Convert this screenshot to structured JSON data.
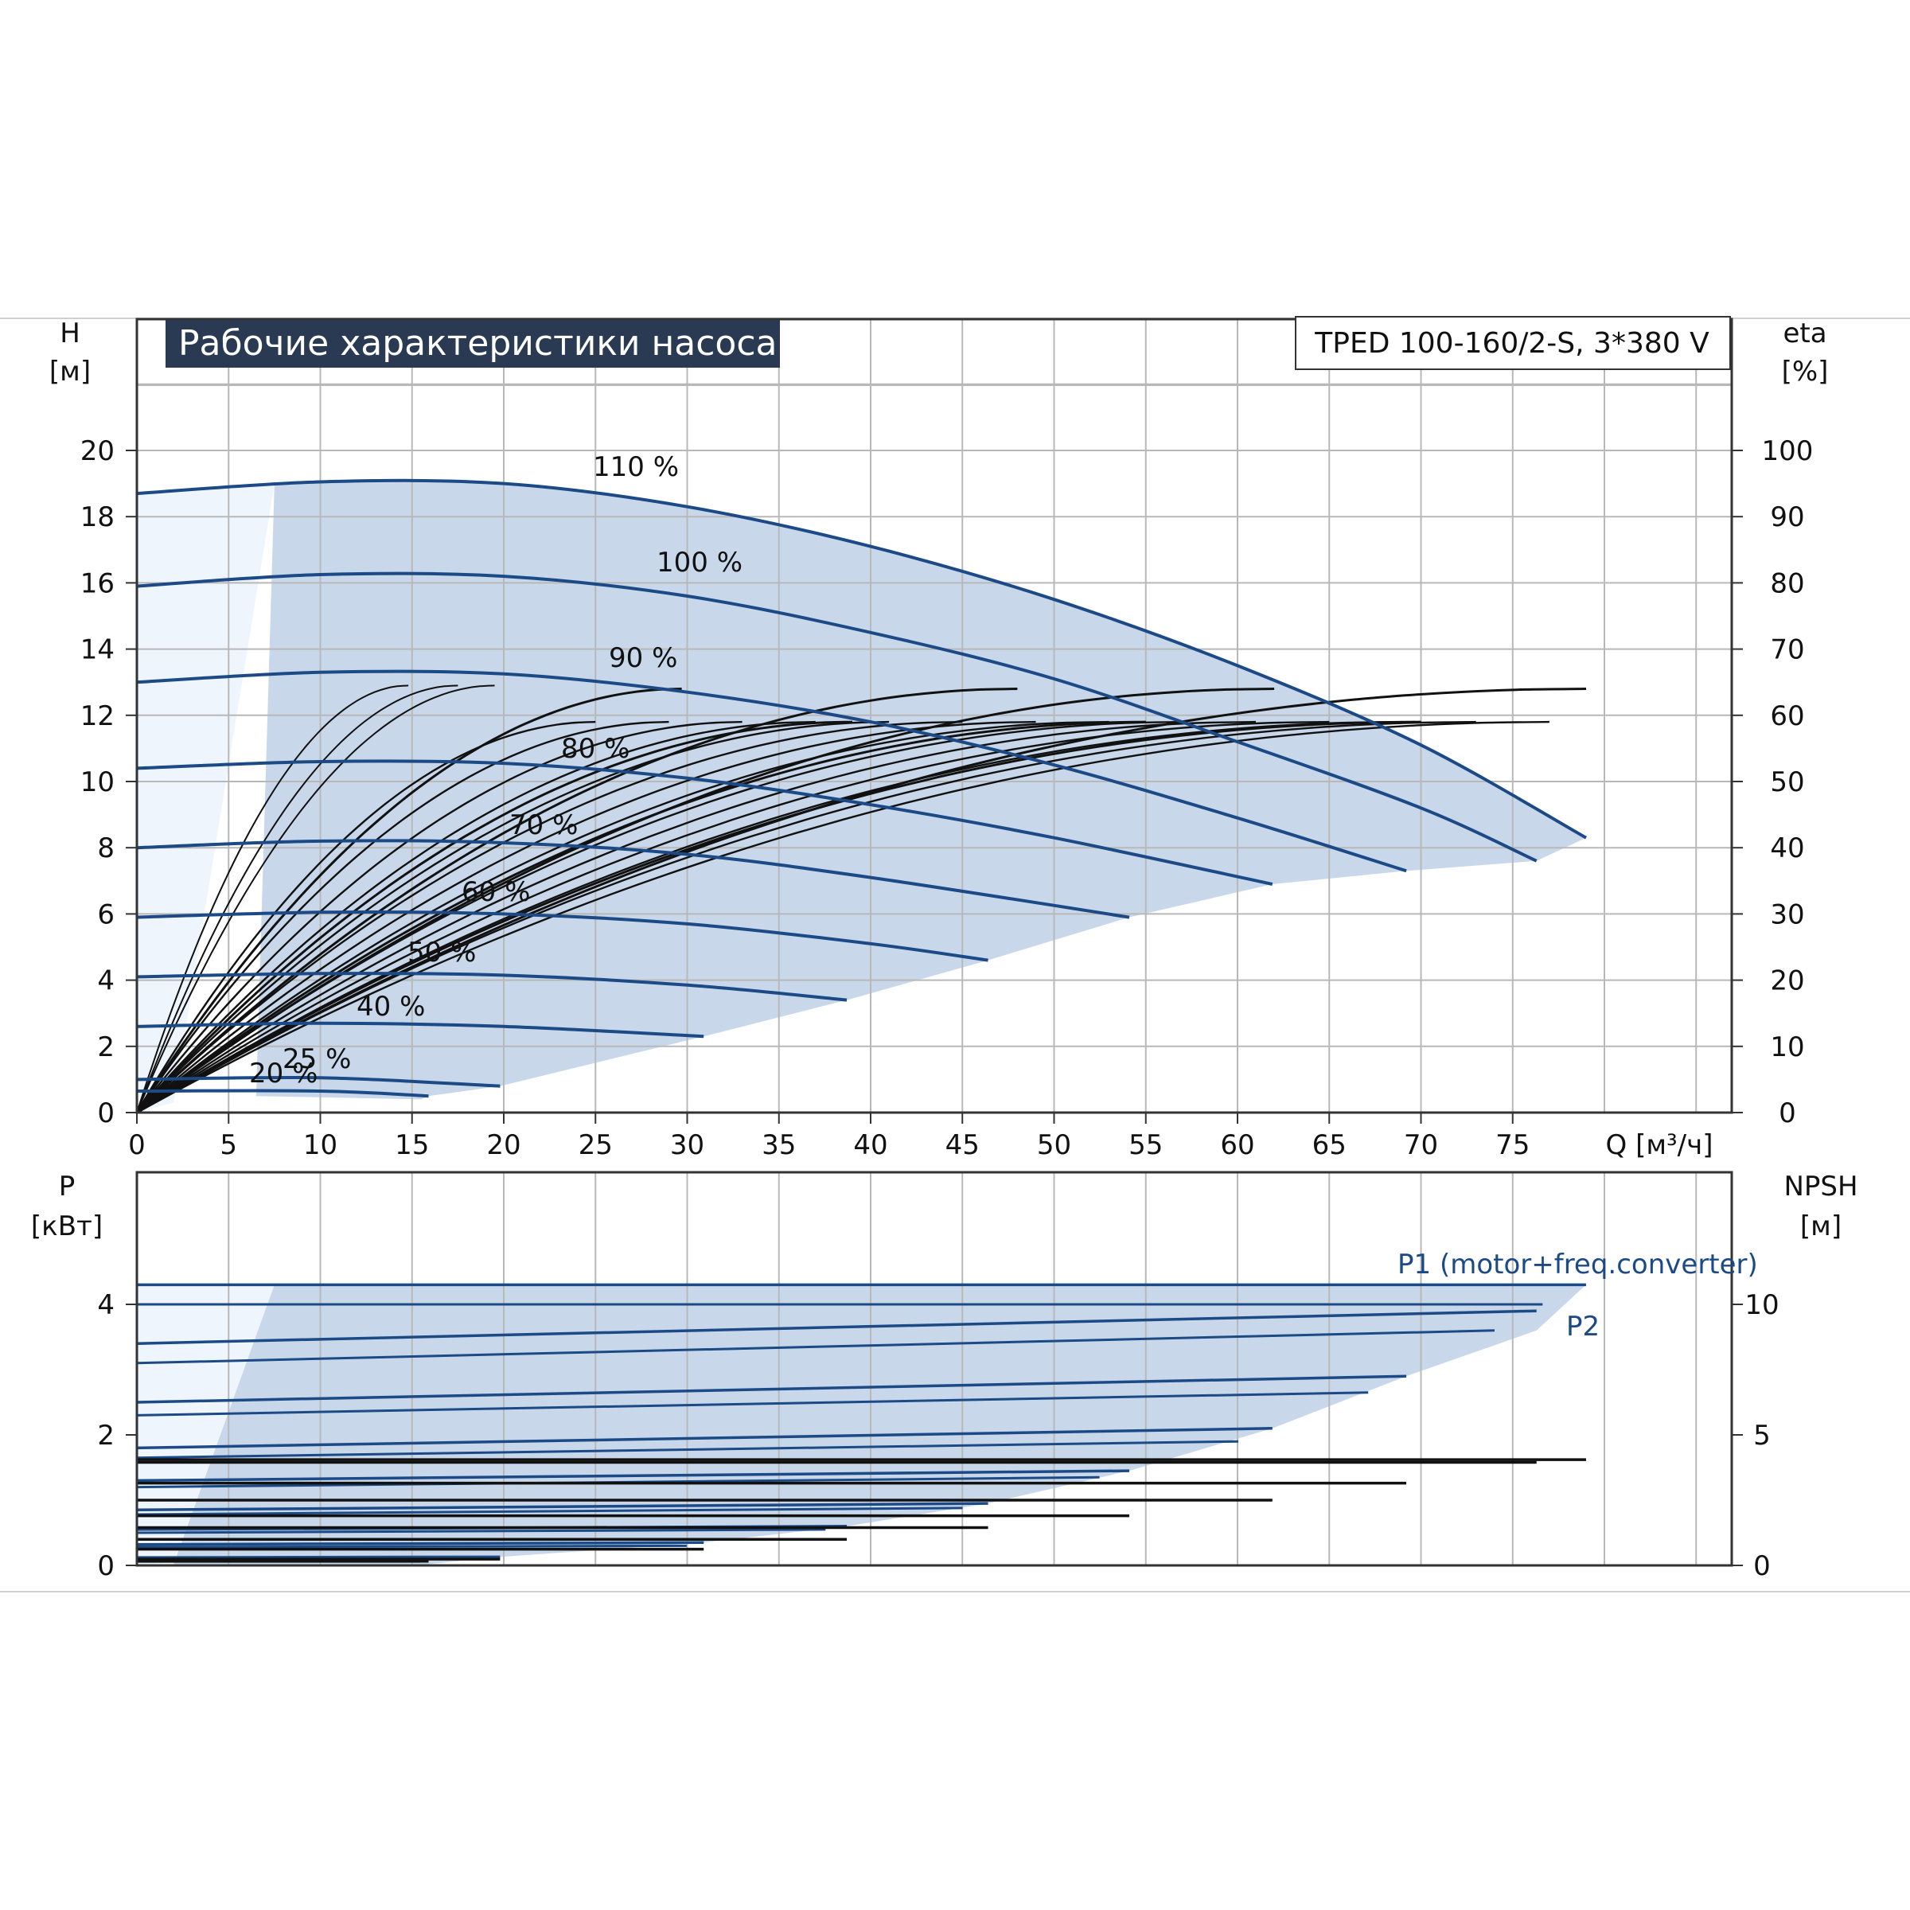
{
  "chart_data": [
    {
      "type": "line",
      "title": "Рабочие характеристики насоса",
      "model_label": "TPED 100-160/2-S, 3*380 V",
      "left_axis": {
        "name": "H",
        "unit": "[м]",
        "ylim": [
          0,
          20
        ],
        "ticks": [
          "0",
          "2",
          "4",
          "6",
          "8",
          "10",
          "12",
          "14",
          "16",
          "18",
          "20"
        ]
      },
      "right_axis": {
        "name": "eta",
        "unit": "[%]",
        "ylim": [
          0,
          100
        ],
        "ticks": [
          "0",
          "10",
          "20",
          "30",
          "40",
          "50",
          "60",
          "70",
          "80",
          "90",
          "100"
        ]
      },
      "x_axis": {
        "label": "Q [м³/ч]",
        "xlim": [
          0,
          80
        ],
        "ticks": [
          "0",
          "5",
          "10",
          "15",
          "20",
          "25",
          "30",
          "35",
          "40",
          "45",
          "50",
          "55",
          "60",
          "65",
          "70",
          "75"
        ]
      },
      "grid": true,
      "colors": {
        "curve": "#1c4a86",
        "area": "#c8d8ea",
        "area_light": "#eef5fd",
        "efficiency": "#111111"
      },
      "series": [
        {
          "name": "110 %",
          "speed": 1.1,
          "x": [
            0,
            10,
            20,
            30,
            40,
            50,
            60,
            70,
            79
          ],
          "y": [
            18.7,
            19.05,
            19.0,
            18.3,
            17.1,
            15.5,
            13.5,
            11.1,
            8.3
          ]
        },
        {
          "name": "100 %",
          "speed": 1.0,
          "x": [
            0,
            10,
            20,
            30,
            40,
            50,
            60,
            70,
            76.3
          ],
          "y": [
            15.9,
            16.25,
            16.2,
            15.6,
            14.5,
            13.1,
            11.2,
            9.2,
            7.6
          ]
        },
        {
          "name": "90 %",
          "speed": 0.9,
          "x": [
            0,
            10,
            20,
            30,
            40,
            50,
            60,
            69.2
          ],
          "y": [
            13.0,
            13.3,
            13.25,
            12.7,
            11.8,
            10.5,
            8.9,
            7.3
          ]
        },
        {
          "name": "80 %",
          "speed": 0.8,
          "x": [
            0,
            10,
            20,
            30,
            40,
            50,
            61.9
          ],
          "y": [
            10.4,
            10.6,
            10.55,
            10.1,
            9.3,
            8.3,
            6.9
          ]
        },
        {
          "name": "70 %",
          "speed": 0.7,
          "x": [
            0,
            10,
            20,
            30,
            40,
            54.1
          ],
          "y": [
            8.0,
            8.2,
            8.15,
            7.8,
            7.1,
            5.9
          ]
        },
        {
          "name": "60 %",
          "speed": 0.6,
          "x": [
            0,
            10,
            20,
            30,
            40,
            46.4
          ],
          "y": [
            5.9,
            6.05,
            6.0,
            5.7,
            5.1,
            4.6
          ]
        },
        {
          "name": "50 %",
          "speed": 0.5,
          "x": [
            0,
            10,
            20,
            30,
            38.7
          ],
          "y": [
            4.1,
            4.2,
            4.15,
            3.85,
            3.4
          ]
        },
        {
          "name": "40 %",
          "speed": 0.4,
          "x": [
            0,
            10,
            20,
            30.9
          ],
          "y": [
            2.6,
            2.7,
            2.6,
            2.3
          ]
        },
        {
          "name": "25 %",
          "speed": 0.25,
          "x": [
            0,
            10,
            19.8
          ],
          "y": [
            1.0,
            1.05,
            0.8
          ]
        },
        {
          "name": "20 %",
          "speed": 0.2,
          "x": [
            0,
            10,
            15.9
          ],
          "y": [
            0.65,
            0.65,
            0.5
          ]
        }
      ],
      "efficiency_peak_percent": 59
    },
    {
      "type": "line",
      "left_axis": {
        "name": "P",
        "unit": "[кВт]",
        "ylim": [
          0,
          5.6
        ],
        "ticks": [
          "0",
          "2",
          "4"
        ]
      },
      "right_axis": {
        "name": "NPSH",
        "unit": "[м]",
        "ylim": [
          0,
          14
        ],
        "ticks": [
          "0",
          "5",
          "10"
        ]
      },
      "x_axis": {
        "xlim": [
          0,
          80
        ]
      },
      "grid": true,
      "series": [
        {
          "name": "P1 (motor+freq.converter)",
          "x": [
            0,
            79
          ],
          "y": [
            4.3,
            4.3
          ]
        },
        {
          "name": "P2",
          "x": [
            0,
            76.3
          ],
          "y": [
            3.4,
            3.65
          ]
        }
      ],
      "power_curves": [
        {
          "speed": "110 %",
          "p1": [
            4.3,
            4.3
          ],
          "p2": [
            4.0,
            4.0
          ],
          "xmax": 79
        },
        {
          "speed": "100 %",
          "p1": [
            3.4,
            3.9
          ],
          "p2": [
            3.1,
            3.6
          ],
          "xmax": 76.3
        },
        {
          "speed": "90 %",
          "p1": [
            2.5,
            2.9
          ],
          "p2": [
            2.3,
            2.65
          ],
          "xmax": 69.2
        },
        {
          "speed": "80 %",
          "p1": [
            1.8,
            2.1
          ],
          "p2": [
            1.65,
            1.9
          ],
          "xmax": 61.9
        },
        {
          "speed": "70 %",
          "p1": [
            1.3,
            1.45
          ],
          "p2": [
            1.2,
            1.35
          ],
          "xmax": 54.1
        },
        {
          "speed": "60 %",
          "p1": [
            0.85,
            0.95
          ],
          "p2": [
            0.78,
            0.88
          ],
          "xmax": 46.4
        },
        {
          "speed": "50 %",
          "p1": [
            0.55,
            0.6
          ],
          "p2": [
            0.5,
            0.55
          ],
          "xmax": 38.7
        },
        {
          "speed": "40 %",
          "p1": [
            0.32,
            0.35
          ],
          "p2": [
            0.28,
            0.3
          ],
          "xmax": 30.9
        },
        {
          "speed": "25 %",
          "p1": [
            0.12,
            0.13
          ],
          "p2": [
            0.1,
            0.11
          ],
          "xmax": 19.8
        },
        {
          "speed": "20 %",
          "p1": [
            0.07,
            0.07
          ],
          "p2": [
            0.06,
            0.06
          ],
          "xmax": 15.9
        }
      ],
      "npsh_curves": [
        {
          "speed": "110 %",
          "y": [
            4.05,
            4.05
          ],
          "xmax": 79
        },
        {
          "speed": "100 %",
          "y": [
            3.95,
            3.95
          ],
          "xmax": 76.3
        },
        {
          "speed": "90 %",
          "y": [
            3.15,
            3.15
          ],
          "xmax": 69.2
        },
        {
          "speed": "80 %",
          "y": [
            2.5,
            2.5
          ],
          "xmax": 61.9
        },
        {
          "speed": "70 %",
          "y": [
            1.9,
            1.9
          ],
          "xmax": 54.1
        },
        {
          "speed": "60 %",
          "y": [
            1.45,
            1.45
          ],
          "xmax": 46.4
        },
        {
          "speed": "50 %",
          "y": [
            1.0,
            1.0
          ],
          "xmax": 38.7
        },
        {
          "speed": "40 %",
          "y": [
            0.62,
            0.62
          ],
          "xmax": 30.9
        },
        {
          "speed": "25 %",
          "y": [
            0.24,
            0.24
          ],
          "xmax": 19.8
        },
        {
          "speed": "20 %",
          "y": [
            0.16,
            0.16
          ],
          "xmax": 15.9
        }
      ]
    }
  ]
}
